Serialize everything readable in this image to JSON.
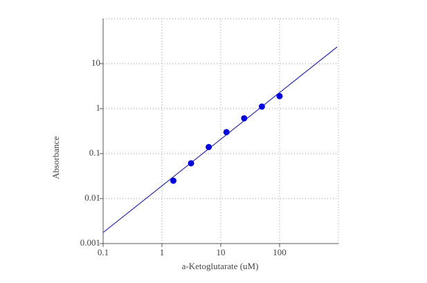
{
  "chart_data": {
    "type": "scatter",
    "x_label": "a-Ketoglutarate (uM)",
    "y_label": "Absorbance",
    "xscale": "log",
    "yscale": "log",
    "grid": true,
    "xlim": [
      0.1,
      1000
    ],
    "ylim": [
      0.001,
      100
    ],
    "xticks": [
      0.1,
      1,
      10,
      100
    ],
    "yticks": [
      0.001,
      0.01,
      0.1,
      1,
      10
    ],
    "series": [
      {
        "color": "#0000dd",
        "x": [
          1.5625,
          3.125,
          6.25,
          12.5,
          25,
          50,
          100
        ],
        "values": [
          0.025,
          0.061,
          0.14,
          0.3,
          0.61,
          1.11,
          1.9
        ]
      }
    ],
    "fit": {
      "color": "#2a2aa8",
      "x": [
        0.1,
        950
      ],
      "values": [
        0.00176,
        23.5
      ]
    }
  }
}
